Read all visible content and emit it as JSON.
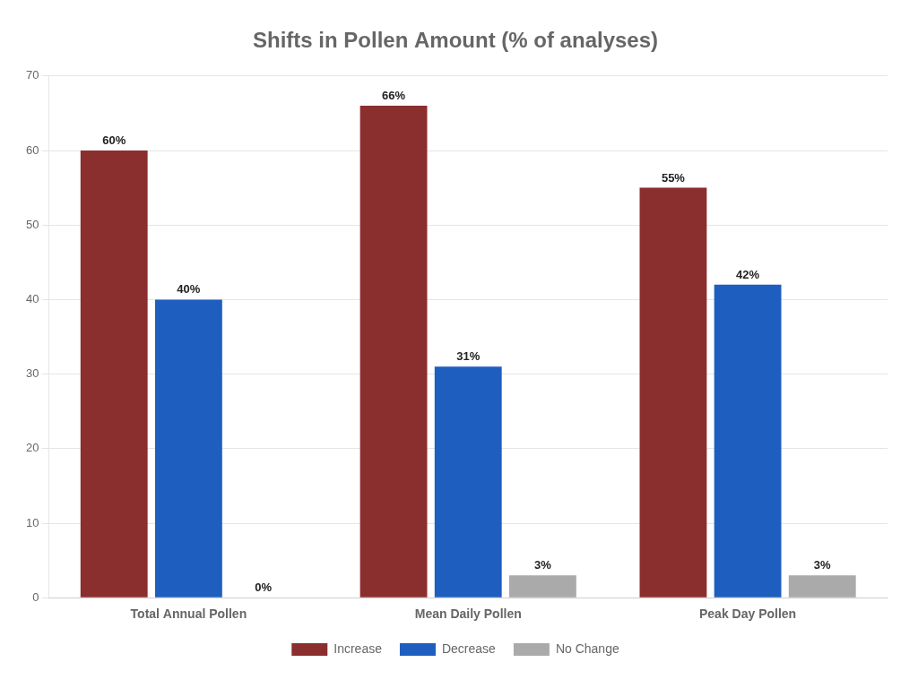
{
  "chart_data": {
    "type": "bar",
    "title": "Shifts in Pollen Amount (% of analyses)",
    "categories": [
      "Total Annual Pollen",
      "Mean Daily Pollen",
      "Peak Day Pollen"
    ],
    "series": [
      {
        "name": "Increase",
        "color": "#8B2E2E",
        "values": [
          60,
          66,
          55
        ],
        "value_labels": [
          "60%",
          "66%",
          "55%"
        ]
      },
      {
        "name": "Decrease",
        "color": "#1E5EBF",
        "values": [
          40,
          31,
          42
        ],
        "value_labels": [
          "40%",
          "31%",
          "42%"
        ]
      },
      {
        "name": "No Change",
        "color": "#AAAAAA",
        "values": [
          0,
          3,
          3
        ],
        "value_labels": [
          "0%",
          "3%",
          "3%"
        ]
      }
    ],
    "ylim": [
      0,
      70
    ],
    "yticks": [
      0,
      10,
      20,
      30,
      40,
      50,
      60,
      70
    ],
    "grid": true,
    "legend": "bottom",
    "data_labels": true
  }
}
